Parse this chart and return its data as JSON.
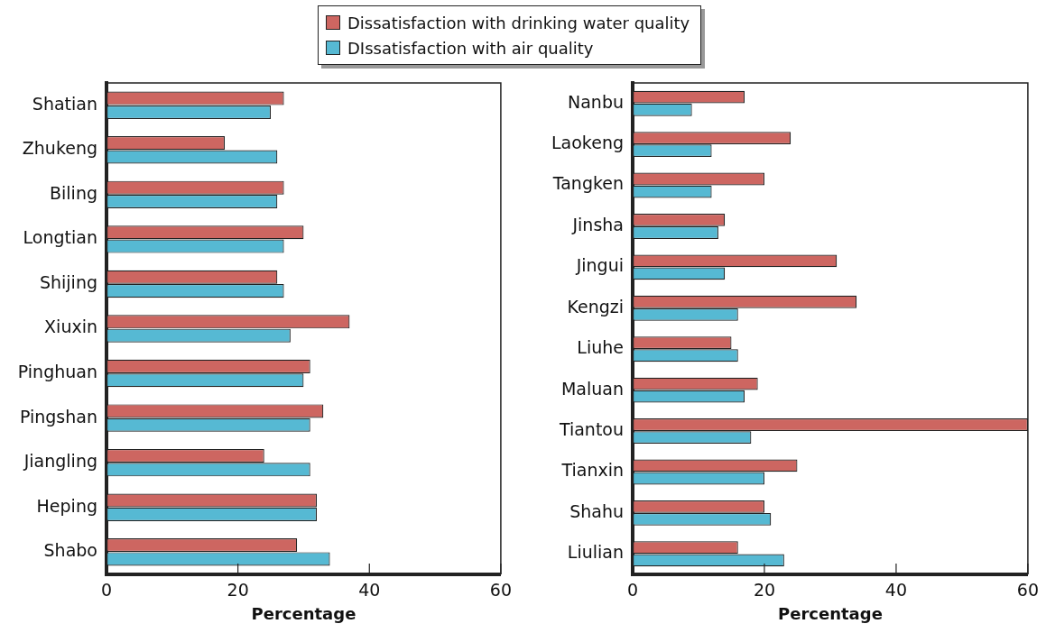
{
  "chart_data": [
    {
      "type": "bar",
      "orientation": "horizontal",
      "legend": "top",
      "xlabel": "Percentage",
      "grid": false,
      "categories": [
        "Shatian",
        "Zhukeng",
        "Biling",
        "Longtian",
        "Shijing",
        "Xiuxin",
        "Pinghuan",
        "Pingshan",
        "Jiangling",
        "Heping",
        "Shabo"
      ],
      "series": [
        {
          "name": "Dissatisfaction with drinking water quality",
          "color": "#cd6661",
          "values": [
            27,
            18,
            27,
            30,
            26,
            37,
            31,
            33,
            24,
            32,
            29
          ]
        },
        {
          "name": "DIssatisfaction with air quality",
          "color": "#56b9d3",
          "values": [
            25,
            26,
            26,
            27,
            27,
            28,
            30,
            31,
            31,
            32,
            34
          ]
        }
      ],
      "xlim": [
        0,
        60
      ],
      "xticks": [
        0,
        20,
        40,
        60
      ]
    },
    {
      "type": "bar",
      "orientation": "horizontal",
      "xlabel": "Percentage",
      "grid": false,
      "categories": [
        "Nanbu",
        "Laokeng",
        "Tangken",
        "Jinsha",
        "Jingui",
        "Kengzi",
        "Liuhe",
        "Maluan",
        "Tiantou",
        "Tianxin",
        "Shahu",
        "Liulian"
      ],
      "series": [
        {
          "color": "#cd6661",
          "values": [
            17,
            24,
            20,
            14,
            31,
            34,
            15,
            19,
            60,
            25,
            20,
            16
          ]
        },
        {
          "color": "#56b9d3",
          "values": [
            9,
            12,
            12,
            13,
            14,
            16,
            16,
            17,
            18,
            20,
            21,
            23
          ]
        }
      ],
      "xlim": [
        0,
        60
      ],
      "xticks": [
        0,
        20,
        40,
        60
      ]
    }
  ]
}
